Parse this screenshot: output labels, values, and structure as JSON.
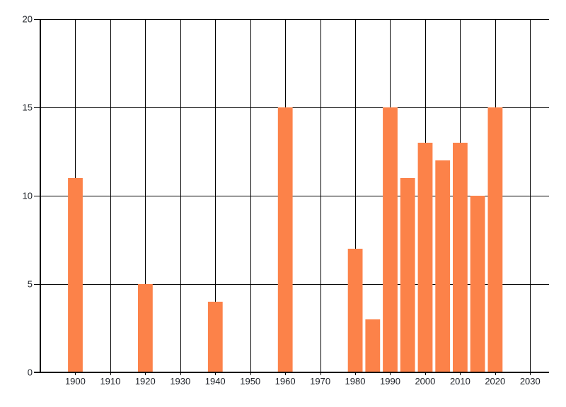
{
  "chart_data": {
    "type": "bar",
    "title": "",
    "xlabel": "",
    "ylabel": "",
    "x": [
      1900,
      1920,
      1940,
      1960,
      1980,
      1985,
      1990,
      1995,
      2000,
      2005,
      2010,
      2015,
      2020
    ],
    "values": [
      11,
      5,
      4,
      15,
      7,
      3,
      15,
      11,
      13,
      12,
      13,
      10,
      15
    ],
    "x_ticks": [
      1900,
      1910,
      1920,
      1930,
      1940,
      1950,
      1960,
      1970,
      1980,
      1990,
      2000,
      2010,
      2020,
      2030
    ],
    "x_tick_labels": [
      "1900",
      "1910",
      "1920",
      "1930",
      "1940",
      "1950",
      "1960",
      "1970",
      "1980",
      "1990",
      "2000",
      "2010",
      "2020",
      "2030"
    ],
    "y_ticks": [
      0,
      5,
      10,
      15,
      20
    ],
    "y_tick_labels": [
      "0",
      "5",
      "10",
      "15",
      "20"
    ],
    "xlim": [
      1890,
      2035.4
    ],
    "ylim": [
      0,
      20
    ],
    "grid": true,
    "legend_position": "none",
    "bar_width_years": 4.2,
    "colors": {
      "bar": "#FC8249",
      "grid": "#000000",
      "axis": "#000000",
      "tick_label": "#1C2026",
      "background": "#FFFFFF"
    }
  }
}
